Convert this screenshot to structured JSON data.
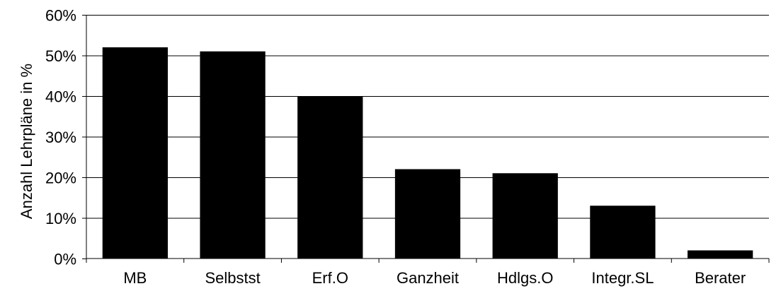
{
  "chart_data": {
    "type": "bar",
    "title": "",
    "xlabel": "",
    "ylabel": "Anzahl Lehrpläne in %",
    "categories": [
      "MB",
      "Selbstst",
      "Erf.O",
      "Ganzheit",
      "Hdlgs.O",
      "Integr.SL",
      "Berater"
    ],
    "values": [
      52,
      51,
      40,
      22,
      21,
      13,
      2
    ],
    "ylim": [
      0,
      60
    ],
    "yticks": [
      0,
      10,
      20,
      30,
      40,
      50,
      60
    ],
    "ytick_labels": [
      "0%",
      "10%",
      "20%",
      "30%",
      "40%",
      "50%",
      "60%"
    ],
    "grid": true,
    "legend": "none",
    "bar_color": "#000000",
    "grid_color": "#000000"
  }
}
